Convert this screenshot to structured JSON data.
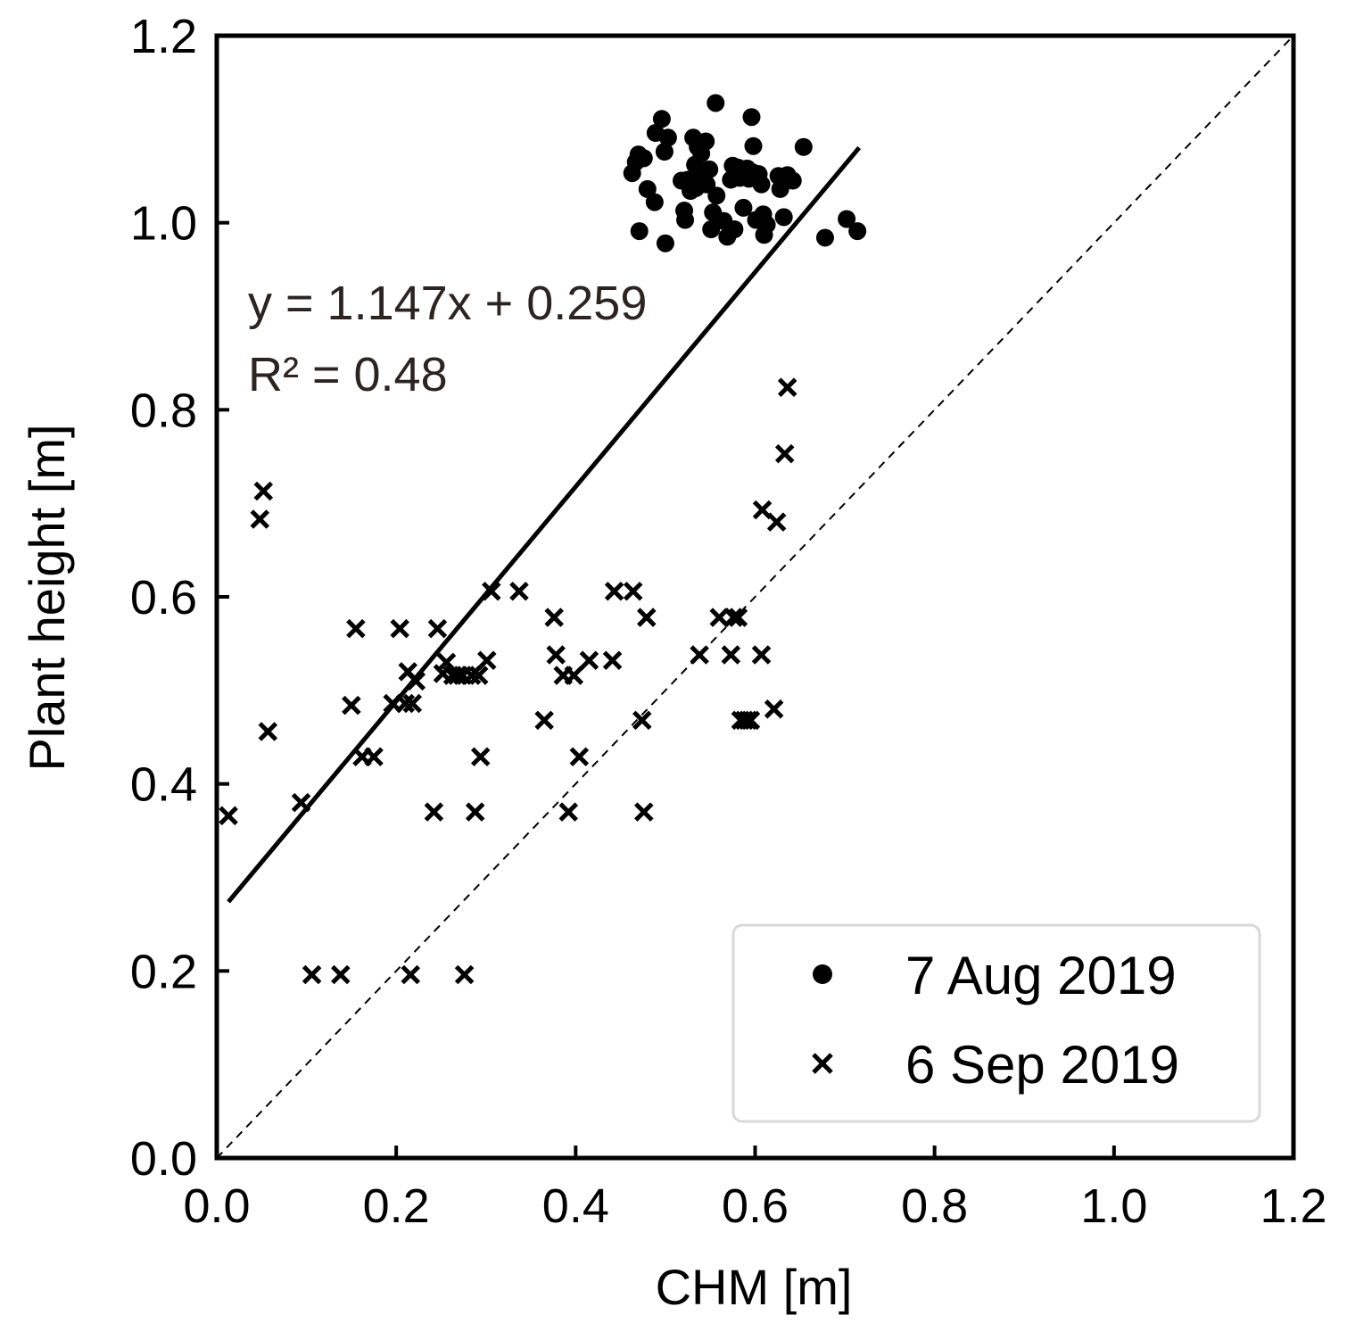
{
  "chart_data": {
    "type": "scatter",
    "xlabel": "CHM [m]",
    "ylabel": "Plant height [m]",
    "xlim": [
      0.0,
      1.2
    ],
    "ylim": [
      0.0,
      1.2
    ],
    "grid": false,
    "x_ticks": [
      "0.0",
      "0.2",
      "0.4",
      "0.6",
      "0.8",
      "1.0",
      "1.2"
    ],
    "y_ticks": [
      "0.0",
      "0.2",
      "0.4",
      "0.6",
      "0.8",
      "1.0",
      "1.2"
    ],
    "tick_values": [
      0.0,
      0.2,
      0.4,
      0.6,
      0.8,
      1.0,
      1.2
    ],
    "legend_position": "bottom-right",
    "series": [
      {
        "name": "7 Aug 2019",
        "marker": "circle",
        "points": [
          [
            0.467,
            1.065
          ],
          [
            0.47,
            1.073
          ],
          [
            0.476,
            1.069
          ],
          [
            0.48,
            1.036
          ],
          [
            0.488,
            1.022
          ],
          [
            0.489,
            1.096
          ],
          [
            0.496,
            1.111
          ],
          [
            0.499,
            1.076
          ],
          [
            0.503,
            1.091
          ],
          [
            0.463,
            1.053
          ],
          [
            0.471,
            0.991
          ],
          [
            0.5,
            0.978
          ],
          [
            0.521,
            1.013
          ],
          [
            0.522,
            1.003
          ],
          [
            0.525,
            1.046
          ],
          [
            0.528,
            1.034
          ],
          [
            0.531,
            1.091
          ],
          [
            0.533,
            1.062
          ],
          [
            0.536,
            1.081
          ],
          [
            0.538,
            1.047
          ],
          [
            0.54,
            1.074
          ],
          [
            0.542,
            1.051
          ],
          [
            0.545,
            1.087
          ],
          [
            0.546,
            1.041
          ],
          [
            0.551,
            0.993
          ],
          [
            0.553,
            1.011
          ],
          [
            0.556,
            1.128
          ],
          [
            0.557,
            1.029
          ],
          [
            0.565,
            1.002
          ],
          [
            0.569,
            0.985
          ],
          [
            0.573,
            1.046
          ],
          [
            0.575,
            1.061
          ],
          [
            0.577,
            0.993
          ],
          [
            0.581,
            1.059
          ],
          [
            0.583,
            1.048
          ],
          [
            0.587,
            1.016
          ],
          [
            0.591,
            1.058
          ],
          [
            0.593,
            1.047
          ],
          [
            0.596,
            1.113
          ],
          [
            0.597,
            1.054
          ],
          [
            0.598,
            1.082
          ],
          [
            0.601,
            1.003
          ],
          [
            0.604,
            1.052
          ],
          [
            0.607,
            1.041
          ],
          [
            0.609,
            1.009
          ],
          [
            0.61,
            0.987
          ],
          [
            0.613,
            0.998
          ],
          [
            0.626,
            1.05
          ],
          [
            0.628,
            1.036
          ],
          [
            0.632,
            1.006
          ],
          [
            0.636,
            1.051
          ],
          [
            0.642,
            1.045
          ],
          [
            0.654,
            1.081
          ],
          [
            0.678,
            0.984
          ],
          [
            0.702,
            1.004
          ],
          [
            0.714,
            0.991
          ],
          [
            0.549,
            1.057
          ],
          [
            0.534,
            1.037
          ],
          [
            0.518,
            1.045
          ]
        ]
      },
      {
        "name": "6 Sep 2019",
        "marker": "x",
        "points": [
          [
            0.013,
            0.366
          ],
          [
            0.048,
            0.683
          ],
          [
            0.052,
            0.713
          ],
          [
            0.057,
            0.456
          ],
          [
            0.094,
            0.38
          ],
          [
            0.106,
            0.196
          ],
          [
            0.138,
            0.196
          ],
          [
            0.15,
            0.484
          ],
          [
            0.155,
            0.566
          ],
          [
            0.162,
            0.429
          ],
          [
            0.175,
            0.429
          ],
          [
            0.196,
            0.486
          ],
          [
            0.204,
            0.566
          ],
          [
            0.21,
            0.486
          ],
          [
            0.213,
            0.52
          ],
          [
            0.216,
            0.196
          ],
          [
            0.218,
            0.486
          ],
          [
            0.222,
            0.51
          ],
          [
            0.242,
            0.37
          ],
          [
            0.246,
            0.566
          ],
          [
            0.252,
            0.518
          ],
          [
            0.256,
            0.53
          ],
          [
            0.263,
            0.516
          ],
          [
            0.268,
            0.516
          ],
          [
            0.274,
            0.516
          ],
          [
            0.276,
            0.196
          ],
          [
            0.284,
            0.516
          ],
          [
            0.288,
            0.37
          ],
          [
            0.292,
            0.516
          ],
          [
            0.294,
            0.429
          ],
          [
            0.301,
            0.532
          ],
          [
            0.306,
            0.606
          ],
          [
            0.337,
            0.606
          ],
          [
            0.365,
            0.468
          ],
          [
            0.376,
            0.578
          ],
          [
            0.378,
            0.538
          ],
          [
            0.386,
            0.516
          ],
          [
            0.392,
            0.37
          ],
          [
            0.398,
            0.516
          ],
          [
            0.404,
            0.429
          ],
          [
            0.415,
            0.532
          ],
          [
            0.441,
            0.532
          ],
          [
            0.443,
            0.606
          ],
          [
            0.464,
            0.606
          ],
          [
            0.474,
            0.468
          ],
          [
            0.476,
            0.37
          ],
          [
            0.479,
            0.578
          ],
          [
            0.538,
            0.538
          ],
          [
            0.56,
            0.578
          ],
          [
            0.573,
            0.538
          ],
          [
            0.576,
            0.578
          ],
          [
            0.581,
            0.578
          ],
          [
            0.584,
            0.468
          ],
          [
            0.588,
            0.468
          ],
          [
            0.592,
            0.468
          ],
          [
            0.595,
            0.468
          ],
          [
            0.607,
            0.538
          ],
          [
            0.608,
            0.693
          ],
          [
            0.621,
            0.48
          ],
          [
            0.624,
            0.68
          ],
          [
            0.633,
            0.753
          ],
          [
            0.636,
            0.824
          ]
        ]
      }
    ],
    "fit_line": {
      "slope": 1.147,
      "intercept": 0.259,
      "x_range": [
        0.013,
        0.716
      ]
    },
    "reference_line": {
      "label": "1:1",
      "style": "dashed"
    },
    "annotations": {
      "equation": "y = 1.147x + 0.259",
      "r2": "R² = 0.48"
    }
  }
}
